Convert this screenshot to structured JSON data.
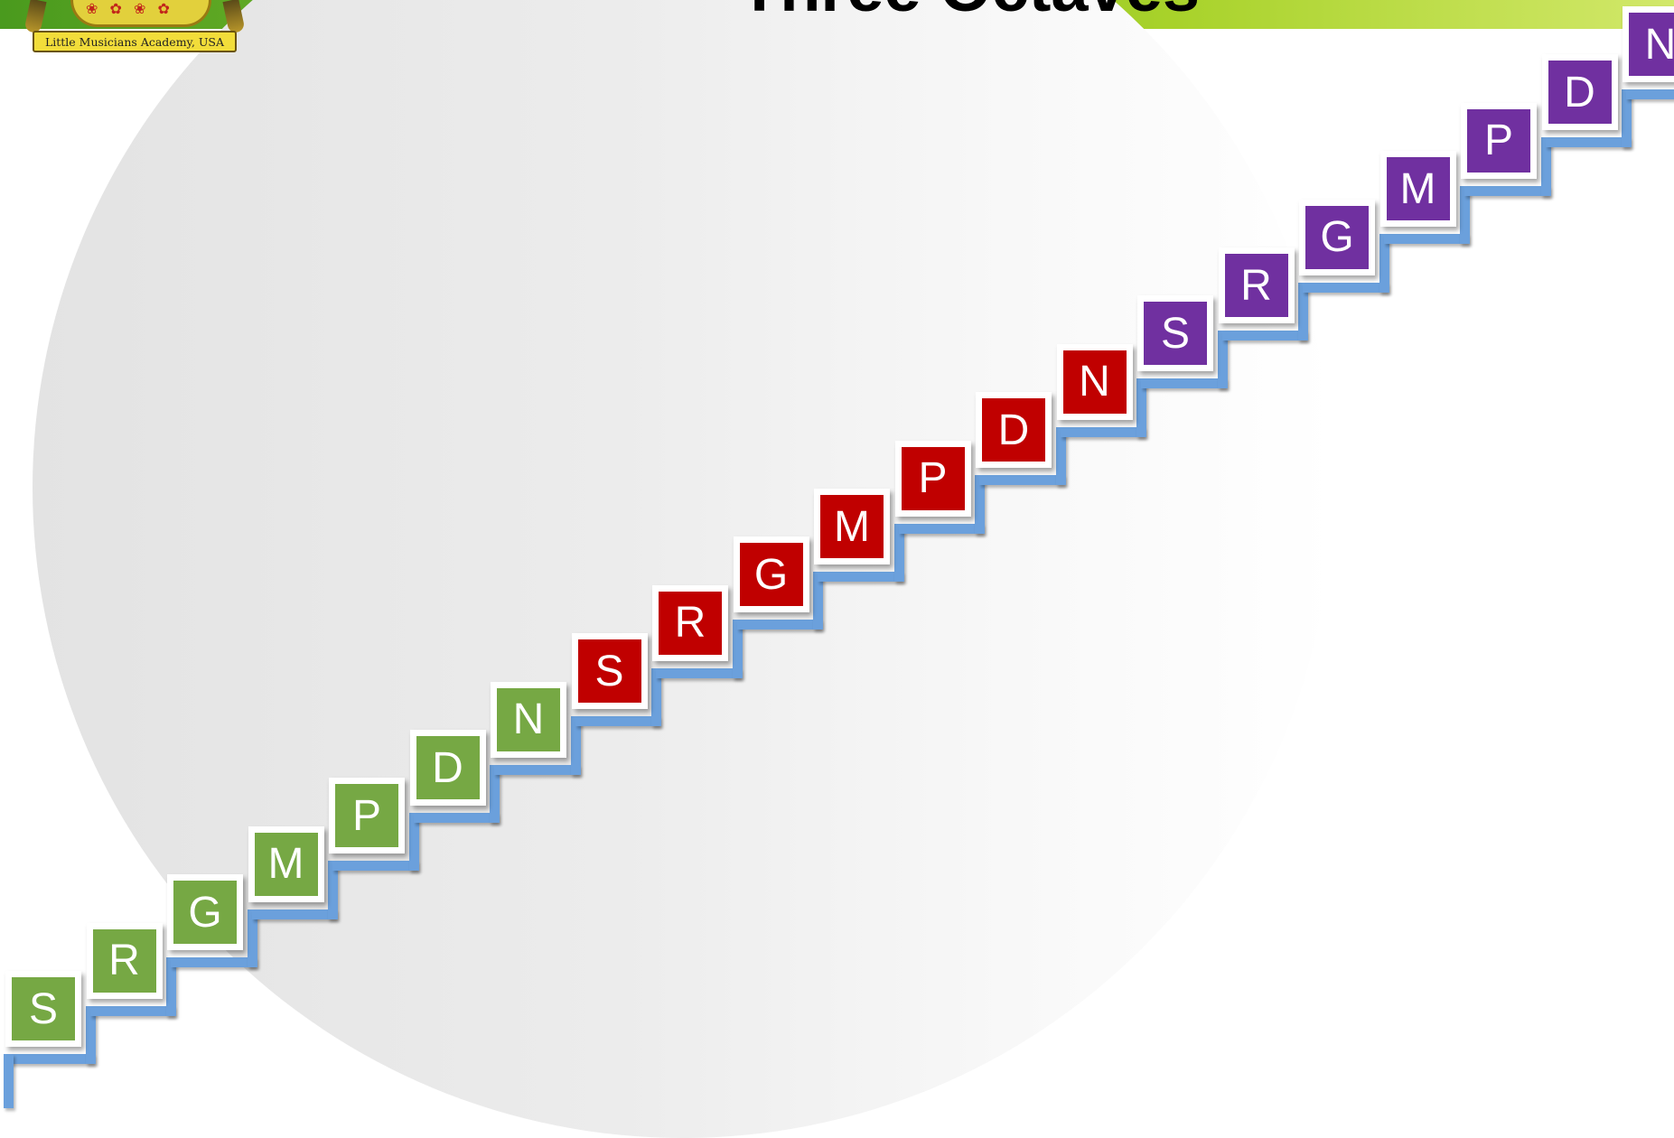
{
  "header": {
    "title": "Three Octaves"
  },
  "logo": {
    "text": "Little Musicians Academy, USA",
    "ornament_glyphs": "❀ ✿ ❀ ✿"
  },
  "colors": {
    "header_band_start": "#4a9a1e",
    "header_band_end": "#d2e86a",
    "stair_blue": "#6ba0dc",
    "note_border": "#ffffff"
  },
  "octaves": [
    {
      "color": "#76a844",
      "notes": [
        "S",
        "R",
        "G",
        "M",
        "P",
        "D",
        "N"
      ]
    },
    {
      "color": "#c00000",
      "notes": [
        "S",
        "R",
        "G",
        "M",
        "P",
        "D",
        "N"
      ]
    },
    {
      "color": "#7030a0",
      "notes": [
        "S",
        "R",
        "G",
        "M",
        "P",
        "D",
        "N"
      ]
    }
  ]
}
